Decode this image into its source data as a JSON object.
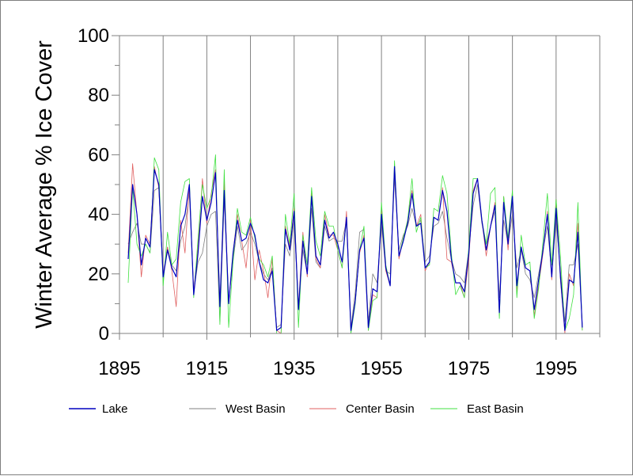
{
  "chart_data": {
    "type": "line",
    "title": "",
    "xlabel": "",
    "ylabel": "Winter Average % Ice Cover",
    "xlim": [
      1895,
      2005
    ],
    "ylim": [
      0,
      100
    ],
    "x_ticks": [
      1895,
      1915,
      1935,
      1955,
      1975,
      1995
    ],
    "x_minor_ticks": [
      1905,
      1925,
      1945,
      1965,
      1985,
      2005
    ],
    "y_ticks": [
      0,
      20,
      40,
      60,
      80,
      100
    ],
    "grid": "vertical",
    "legend": "bottom",
    "x_start": 1897,
    "series": [
      {
        "name": "Lake",
        "color": "#0000c0",
        "values": [
          25,
          50,
          40,
          23,
          32,
          29,
          55,
          50,
          19,
          28,
          22,
          19,
          36,
          40,
          50,
          13,
          27,
          46,
          38,
          44,
          54,
          9,
          48,
          10,
          27,
          38,
          31,
          32,
          37,
          33,
          24,
          18,
          17,
          21,
          1,
          2,
          35,
          28,
          41,
          8,
          31,
          20,
          46,
          26,
          23,
          38,
          32,
          34,
          30,
          24,
          39,
          1,
          11,
          28,
          32,
          2,
          15,
          14,
          40,
          22,
          16,
          56,
          26,
          31,
          37,
          47,
          36,
          37,
          22,
          24,
          39,
          38,
          48,
          41,
          25,
          17,
          17,
          14,
          27,
          47,
          52,
          38,
          28,
          36,
          43,
          7,
          44,
          30,
          46,
          16,
          29,
          22,
          21,
          8,
          18,
          28,
          40,
          19,
          42,
          19,
          1,
          18,
          17,
          34,
          2
        ]
      },
      {
        "name": "West Basin",
        "color": "#808080",
        "values": [
          30,
          34,
          37,
          30,
          30,
          27,
          48,
          49,
          20,
          29,
          23,
          21,
          31,
          36,
          47,
          14,
          24,
          27,
          36,
          40,
          41,
          4,
          45,
          11,
          24,
          36,
          28,
          30,
          34,
          30,
          24,
          20,
          18,
          22,
          2,
          3,
          30,
          26,
          38,
          9,
          28,
          20,
          42,
          24,
          22,
          36,
          31,
          32,
          31,
          31,
          38,
          2,
          14,
          34,
          35,
          4,
          20,
          17,
          37,
          21,
          20,
          52,
          28,
          33,
          36,
          42,
          36,
          38,
          24,
          26,
          36,
          37,
          41,
          32,
          25,
          20,
          19,
          17,
          28,
          43,
          50,
          37,
          30,
          36,
          41,
          12,
          38,
          30,
          40,
          22,
          28,
          20,
          18,
          12,
          20,
          28,
          36,
          20,
          38,
          21,
          4,
          23,
          23,
          30,
          3
        ]
      },
      {
        "name": "Center Basin",
        "color": "#e06060",
        "values": [
          27,
          57,
          40,
          19,
          33,
          30,
          56,
          49,
          19,
          29,
          21,
          9,
          38,
          27,
          50,
          14,
          29,
          52,
          37,
          47,
          55,
          9,
          51,
          10,
          27,
          40,
          31,
          22,
          38,
          18,
          28,
          21,
          12,
          25,
          1,
          0,
          36,
          29,
          42,
          9,
          34,
          19,
          47,
          25,
          22,
          40,
          33,
          33,
          28,
          22,
          41,
          1,
          11,
          27,
          33,
          1,
          13,
          12,
          41,
          21,
          16,
          56,
          25,
          32,
          38,
          48,
          36,
          40,
          21,
          24,
          39,
          38,
          49,
          25,
          24,
          17,
          17,
          12,
          25,
          48,
          52,
          38,
          26,
          36,
          44,
          6,
          46,
          28,
          47,
          14,
          29,
          22,
          21,
          6,
          16,
          27,
          41,
          18,
          45,
          18,
          0,
          20,
          16,
          37,
          1
        ]
      },
      {
        "name": "East Basin",
        "color": "#40e040",
        "values": [
          17,
          49,
          30,
          26,
          30,
          27,
          59,
          55,
          16,
          34,
          23,
          25,
          44,
          51,
          52,
          12,
          32,
          50,
          42,
          46,
          60,
          3,
          55,
          2,
          24,
          42,
          34,
          33,
          39,
          32,
          25,
          23,
          19,
          26,
          0,
          0,
          40,
          30,
          47,
          2,
          33,
          23,
          49,
          31,
          26,
          41,
          36,
          36,
          28,
          22,
          39,
          0,
          10,
          28,
          36,
          1,
          11,
          12,
          44,
          23,
          16,
          58,
          26,
          32,
          38,
          52,
          34,
          39,
          22,
          23,
          42,
          41,
          53,
          47,
          27,
          13,
          16,
          12,
          29,
          52,
          52,
          38,
          30,
          47,
          49,
          5,
          46,
          32,
          48,
          12,
          33,
          23,
          24,
          5,
          15,
          31,
          47,
          23,
          45,
          26,
          1,
          5,
          13,
          44,
          1
        ]
      }
    ]
  }
}
